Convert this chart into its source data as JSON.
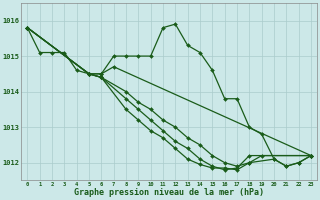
{
  "background_color": "#cce8e8",
  "grid_color": "#aacccc",
  "line_color": "#1a5c1a",
  "marker_color": "#1a5c1a",
  "xlabel": "Graphe pression niveau de la mer (hPa)",
  "xlabel_fontsize": 6.0,
  "xlim": [
    -0.5,
    23.5
  ],
  "ylim": [
    1011.5,
    1016.5
  ],
  "xtick_labels": [
    "0",
    "1",
    "2",
    "3",
    "4",
    "5",
    "6",
    "7",
    "8",
    "9",
    "10",
    "11",
    "12",
    "13",
    "14",
    "15",
    "16",
    "17",
    "18",
    "19",
    "20",
    "21",
    "22",
    "23"
  ],
  "ytick_values": [
    1012,
    1013,
    1014,
    1015,
    1016
  ],
  "line_main": {
    "x": [
      0,
      1,
      2,
      3,
      4,
      5,
      6,
      7,
      8,
      9,
      10,
      11,
      12,
      13,
      14,
      15,
      16,
      17,
      18,
      19,
      20,
      21,
      22,
      23
    ],
    "y": [
      1015.8,
      1015.1,
      1015.1,
      1015.1,
      1014.6,
      1014.5,
      1014.5,
      1015.0,
      1015.0,
      1015.0,
      1015.0,
      1015.8,
      1015.9,
      1015.3,
      1015.1,
      1014.6,
      1013.8,
      1013.8,
      1013.0,
      1012.8,
      1012.1,
      1011.9,
      1012.0,
      1012.2
    ]
  },
  "line_b": {
    "x": [
      0,
      5,
      6,
      7,
      23
    ],
    "y": [
      1015.8,
      1014.5,
      1014.5,
      1014.7,
      1012.2
    ]
  },
  "line_c": {
    "x": [
      0,
      5,
      6,
      8,
      9,
      10,
      11,
      12,
      13,
      14,
      15,
      16,
      17,
      18,
      19,
      23
    ],
    "y": [
      1015.8,
      1014.5,
      1014.4,
      1014.0,
      1013.7,
      1013.5,
      1013.2,
      1013.0,
      1012.7,
      1012.5,
      1012.2,
      1012.0,
      1011.9,
      1012.0,
      1012.2,
      1012.2
    ]
  },
  "line_d": {
    "x": [
      0,
      5,
      6,
      8,
      9,
      10,
      11,
      12,
      13,
      14,
      15,
      16,
      17,
      18,
      23
    ],
    "y": [
      1015.8,
      1014.5,
      1014.4,
      1013.8,
      1013.5,
      1013.2,
      1012.9,
      1012.6,
      1012.4,
      1012.1,
      1011.9,
      1011.8,
      1011.85,
      1012.2,
      1012.2
    ]
  },
  "line_e": {
    "x": [
      0,
      5,
      6,
      8,
      9,
      10,
      11,
      12,
      13,
      14,
      15,
      16,
      17,
      18,
      20,
      21,
      22,
      23
    ],
    "y": [
      1015.8,
      1014.5,
      1014.4,
      1013.5,
      1013.2,
      1012.9,
      1012.7,
      1012.4,
      1012.1,
      1011.95,
      1011.85,
      1011.85,
      1011.8,
      1012.0,
      1012.1,
      1011.9,
      1012.0,
      1012.2
    ]
  }
}
